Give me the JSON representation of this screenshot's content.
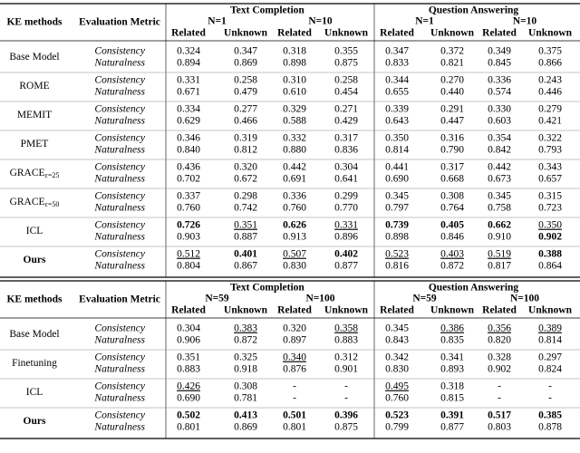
{
  "tables": [
    {
      "header": {
        "method": "KE methods",
        "metric": "Evaluation Metric",
        "groups": [
          {
            "title": "Text Completion",
            "subgroups": [
              {
                "label": "N=1",
                "columns": [
                  "Related",
                  "Unknown"
                ]
              },
              {
                "label": "N=10",
                "columns": [
                  "Related",
                  "Unknown"
                ]
              }
            ]
          },
          {
            "title": "Question Answering",
            "subgroups": [
              {
                "label": "N=1",
                "columns": [
                  "Related",
                  "Unknown"
                ]
              },
              {
                "label": "N=10",
                "columns": [
                  "Related",
                  "Unknown"
                ]
              }
            ]
          }
        ]
      },
      "rows": [
        {
          "method": "Base Model",
          "metrics": [
            {
              "name": "Consistency",
              "values": [
                "0.324",
                "0.347",
                "0.318",
                "0.355",
                "0.347",
                "0.372",
                "0.349",
                "0.375"
              ]
            },
            {
              "name": "Naturalness",
              "values": [
                "0.894",
                "0.869",
                "0.898",
                "0.875",
                "0.833",
                "0.821",
                "0.845",
                "0.866"
              ]
            }
          ]
        },
        {
          "method": "ROME",
          "metrics": [
            {
              "name": "Consistency",
              "values": [
                "0.331",
                "0.258",
                "0.310",
                "0.258",
                "0.344",
                "0.270",
                "0.336",
                "0.243"
              ]
            },
            {
              "name": "Naturalness",
              "values": [
                "0.671",
                "0.479",
                "0.610",
                "0.454",
                "0.655",
                "0.440",
                "0.574",
                "0.446"
              ]
            }
          ]
        },
        {
          "method": "MEMIT",
          "metrics": [
            {
              "name": "Consistency",
              "values": [
                "0.334",
                "0.277",
                "0.329",
                "0.271",
                "0.339",
                "0.291",
                "0.330",
                "0.279"
              ]
            },
            {
              "name": "Naturalness",
              "values": [
                "0.629",
                "0.466",
                "0.588",
                "0.429",
                "0.643",
                "0.447",
                "0.603",
                "0.421"
              ]
            }
          ]
        },
        {
          "method": "PMET",
          "metrics": [
            {
              "name": "Consistency",
              "values": [
                "0.346",
                "0.319",
                "0.332",
                "0.317",
                "0.350",
                "0.316",
                "0.354",
                "0.322"
              ]
            },
            {
              "name": "Naturalness",
              "values": [
                "0.840",
                "0.812",
                "0.880",
                "0.836",
                "0.814",
                "0.790",
                "0.842",
                "0.793"
              ]
            }
          ]
        },
        {
          "method": "GRACE",
          "subscript": "ε=25",
          "metrics": [
            {
              "name": "Consistency",
              "values": [
                "0.436",
                "0.320",
                "0.442",
                "0.304",
                "0.441",
                "0.317",
                "0.442",
                "0.343"
              ]
            },
            {
              "name": "Naturalness",
              "values": [
                "0.702",
                "0.672",
                "0.691",
                "0.641",
                "0.690",
                "0.668",
                "0.673",
                "0.657"
              ]
            }
          ]
        },
        {
          "method": "GRACE",
          "subscript": "ε=50",
          "metrics": [
            {
              "name": "Consistency",
              "values": [
                "0.337",
                "0.298",
                "0.336",
                "0.299",
                "0.345",
                "0.308",
                "0.345",
                "0.315"
              ]
            },
            {
              "name": "Naturalness",
              "values": [
                "0.760",
                "0.742",
                "0.760",
                "0.770",
                "0.797",
                "0.764",
                "0.758",
                "0.723"
              ]
            }
          ]
        },
        {
          "method": "ICL",
          "metrics": [
            {
              "name": "Consistency",
              "values": [
                "0.726",
                "0.351",
                "0.626",
                "0.331",
                "0.739",
                "0.405",
                "0.662",
                "0.350"
              ]
            },
            {
              "name": "Naturalness",
              "values": [
                "0.903",
                "0.887",
                "0.913",
                "0.896",
                "0.898",
                "0.846",
                "0.910",
                "0.902"
              ]
            }
          ]
        },
        {
          "method": "Ours",
          "metrics": [
            {
              "name": "Consistency",
              "values": [
                "0.512",
                "0.401",
                "0.507",
                "0.402",
                "0.523",
                "0.403",
                "0.519",
                "0.388"
              ]
            },
            {
              "name": "Naturalness",
              "values": [
                "0.804",
                "0.867",
                "0.830",
                "0.877",
                "0.816",
                "0.872",
                "0.817",
                "0.864"
              ]
            }
          ]
        }
      ]
    },
    {
      "header": {
        "method": "KE methods",
        "metric": "Evaluation Metric",
        "groups": [
          {
            "title": "Text Completion",
            "subgroups": [
              {
                "label": "N=59",
                "columns": [
                  "Related",
                  "Unknown"
                ]
              },
              {
                "label": "N=100",
                "columns": [
                  "Related",
                  "Unknown"
                ]
              }
            ]
          },
          {
            "title": "Question Answering",
            "subgroups": [
              {
                "label": "N=59",
                "columns": [
                  "Related",
                  "Unknown"
                ]
              },
              {
                "label": "N=100",
                "columns": [
                  "Related",
                  "Unknown"
                ]
              }
            ]
          }
        ]
      },
      "rows": [
        {
          "method": "Base Model",
          "metrics": [
            {
              "name": "Consistency",
              "values": [
                "0.304",
                "0.383",
                "0.320",
                "0.358",
                "0.345",
                "0.386",
                "0.356",
                "0.389"
              ]
            },
            {
              "name": "Naturalness",
              "values": [
                "0.906",
                "0.872",
                "0.897",
                "0.883",
                "0.843",
                "0.835",
                "0.820",
                "0.814"
              ]
            }
          ]
        },
        {
          "method": "Finetuning",
          "metrics": [
            {
              "name": "Consistency",
              "values": [
                "0.351",
                "0.325",
                "0.340",
                "0.312",
                "0.342",
                "0.341",
                "0.328",
                "0.297"
              ]
            },
            {
              "name": "Naturalness",
              "values": [
                "0.883",
                "0.918",
                "0.876",
                "0.901",
                "0.830",
                "0.893",
                "0.902",
                "0.824"
              ]
            }
          ]
        },
        {
          "method": "ICL",
          "metrics": [
            {
              "name": "Consistency",
              "values": [
                "0.426",
                "0.308",
                "-",
                "-",
                "0.495",
                "0.318",
                "-",
                "-"
              ]
            },
            {
              "name": "Naturalness",
              "values": [
                "0.690",
                "0.781",
                "-",
                "-",
                "0.760",
                "0.815",
                "-",
                "-"
              ]
            }
          ]
        },
        {
          "method": "Ours",
          "metrics": [
            {
              "name": "Consistency",
              "values": [
                "0.502",
                "0.413",
                "0.501",
                "0.396",
                "0.523",
                "0.391",
                "0.517",
                "0.385"
              ]
            },
            {
              "name": "Naturalness",
              "values": [
                "0.801",
                "0.869",
                "0.801",
                "0.875",
                "0.799",
                "0.877",
                "0.803",
                "0.878"
              ]
            }
          ]
        }
      ]
    }
  ]
}
